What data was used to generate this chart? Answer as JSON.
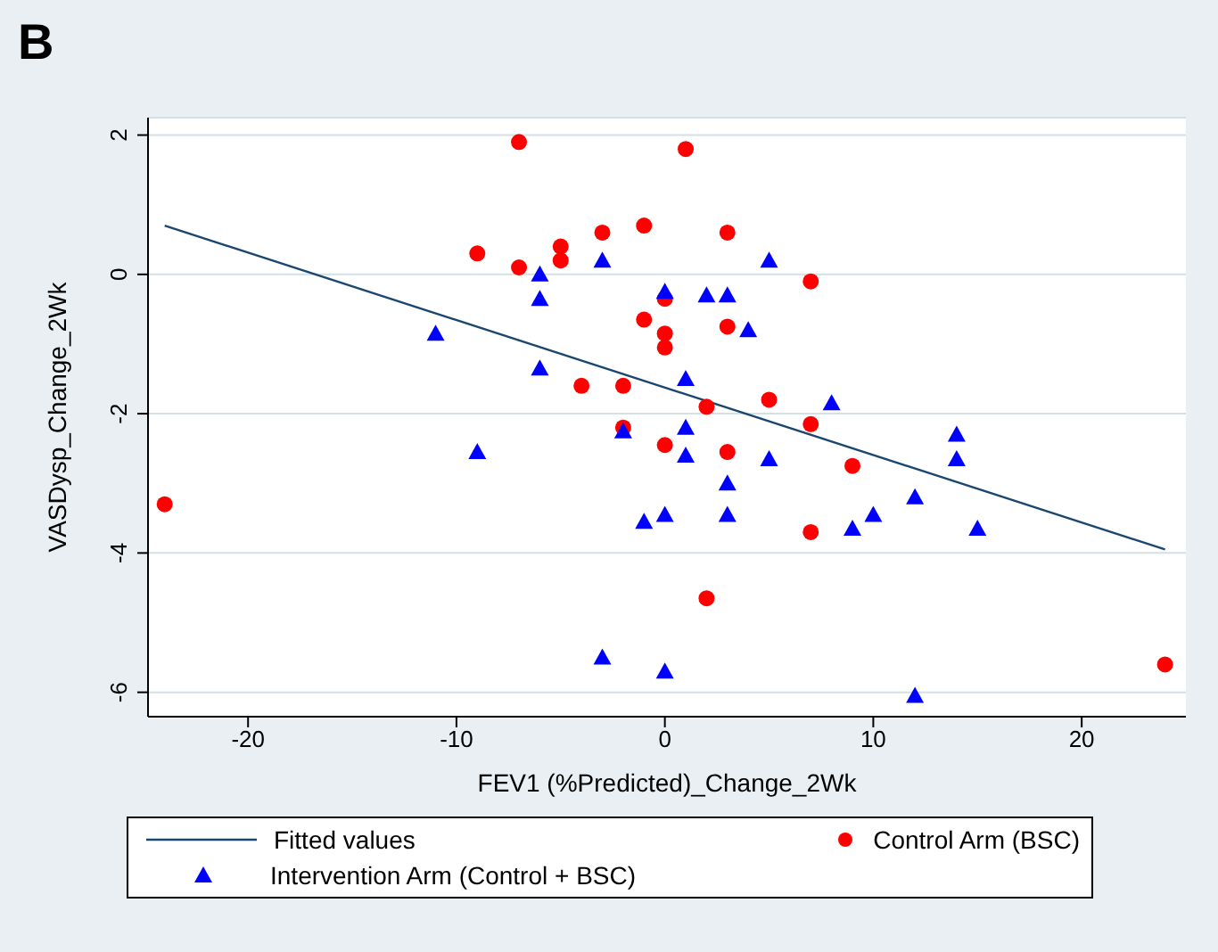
{
  "chart_data": {
    "type": "scatter",
    "title": "B",
    "xlabel": "FEV1 (%Predicted)_Change_2Wk",
    "ylabel": "VASDysp_Change_2Wk",
    "xlim": [
      -24.8,
      25
    ],
    "xticks": [
      -20,
      -10,
      0,
      10,
      20
    ],
    "ylim": [
      -6.35,
      2.25
    ],
    "yticks": [
      -6,
      -4,
      -2,
      0,
      2
    ],
    "grid": "y",
    "legend": "bottom",
    "series": [
      {
        "name": "Fitted values",
        "type": "line",
        "color": "#1a476f",
        "marker": "none",
        "x": [
          -24,
          24
        ],
        "values": [
          0.7,
          -3.95
        ]
      },
      {
        "name": "Control Arm (BSC)",
        "color": "#ff0000",
        "marker": "circle",
        "x": [
          -7,
          1,
          -9,
          -7,
          -5,
          -5,
          -3,
          -1,
          3,
          7,
          -1,
          0,
          0,
          0,
          3,
          -4,
          -2,
          2,
          5,
          -2,
          0,
          3,
          7,
          9,
          7,
          2,
          -24,
          24
        ],
        "values": [
          1.9,
          1.8,
          0.3,
          0.1,
          0.4,
          0.2,
          0.6,
          0.7,
          0.6,
          -0.1,
          -0.65,
          -0.85,
          -1.05,
          -0.35,
          -0.75,
          -1.6,
          -1.6,
          -1.9,
          -1.8,
          -2.2,
          -2.45,
          -2.55,
          -2.15,
          -2.75,
          -3.7,
          -4.65,
          -3.3,
          -5.6
        ]
      },
      {
        "name": "Intervention Arm (Control + BSC)",
        "color": "#0000ff",
        "marker": "triangle",
        "x": [
          -11,
          -9,
          -6,
          -6,
          -6,
          -3,
          -2,
          -1,
          0,
          0,
          -3,
          0,
          2,
          3,
          4,
          5,
          1,
          8,
          1,
          1,
          3,
          3,
          5,
          9,
          10,
          12,
          14,
          14,
          15,
          12
        ],
        "values": [
          -0.85,
          -2.55,
          0,
          -0.35,
          -1.35,
          0.2,
          -2.25,
          -3.55,
          -0.25,
          -3.45,
          -5.5,
          -5.7,
          -0.3,
          -0.3,
          -0.8,
          0.2,
          -1.5,
          -1.85,
          -2.2,
          -2.6,
          -3.0,
          -3.45,
          -2.65,
          -3.65,
          -3.45,
          -3.2,
          -2.3,
          -2.65,
          -3.65,
          -6.05
        ]
      }
    ]
  }
}
